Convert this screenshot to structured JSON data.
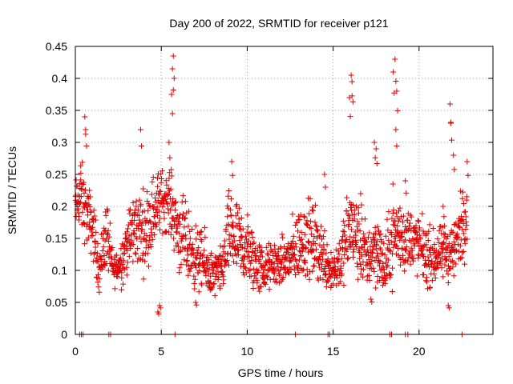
{
  "chart_data": {
    "type": "scatter",
    "title": "Day 200 of 2022, SRMTID for receiver p121",
    "xlabel": "GPS time / hours",
    "ylabel": "SRMTID / TECUs",
    "xlim": [
      0,
      24.3
    ],
    "ylim": [
      0,
      0.45
    ],
    "xticks": [
      0,
      5,
      10,
      15,
      20
    ],
    "yticks": [
      0,
      0.05,
      0.1,
      0.15,
      0.2,
      0.25,
      0.3,
      0.35,
      0.4,
      0.45
    ],
    "xtick_labels": [
      "0",
      "5",
      "10",
      "15",
      "20"
    ],
    "ytick_labels": [
      "0",
      "0.05",
      "0.1",
      "0.15",
      "0.2",
      "0.25",
      "0.3",
      "0.35",
      "0.4",
      "0.45"
    ],
    "grid": true,
    "marker": "+",
    "color": "#e00000",
    "series": [
      {
        "name": "SRMTID",
        "envelope": [
          [
            0.0,
            0.2,
            0.03
          ],
          [
            0.3,
            0.22,
            0.05
          ],
          [
            0.6,
            0.19,
            0.04
          ],
          [
            1.0,
            0.17,
            0.04
          ],
          [
            1.4,
            0.1,
            0.03
          ],
          [
            1.8,
            0.16,
            0.05
          ],
          [
            2.2,
            0.1,
            0.02
          ],
          [
            2.6,
            0.11,
            0.03
          ],
          [
            3.0,
            0.14,
            0.04
          ],
          [
            3.5,
            0.17,
            0.05
          ],
          [
            4.0,
            0.16,
            0.05
          ],
          [
            4.5,
            0.19,
            0.05
          ],
          [
            5.0,
            0.21,
            0.04
          ],
          [
            5.5,
            0.21,
            0.04
          ],
          [
            6.0,
            0.16,
            0.05
          ],
          [
            6.5,
            0.14,
            0.05
          ],
          [
            7.0,
            0.12,
            0.04
          ],
          [
            7.5,
            0.11,
            0.04
          ],
          [
            8.0,
            0.09,
            0.03
          ],
          [
            8.5,
            0.1,
            0.03
          ],
          [
            9.0,
            0.16,
            0.06
          ],
          [
            9.5,
            0.14,
            0.05
          ],
          [
            10.0,
            0.13,
            0.05
          ],
          [
            10.5,
            0.11,
            0.04
          ],
          [
            11.0,
            0.1,
            0.03
          ],
          [
            11.5,
            0.11,
            0.03
          ],
          [
            12.0,
            0.11,
            0.03
          ],
          [
            12.5,
            0.12,
            0.04
          ],
          [
            13.0,
            0.14,
            0.05
          ],
          [
            13.5,
            0.15,
            0.05
          ],
          [
            14.0,
            0.14,
            0.05
          ],
          [
            14.5,
            0.12,
            0.04
          ],
          [
            15.0,
            0.1,
            0.03
          ],
          [
            15.5,
            0.12,
            0.04
          ],
          [
            16.0,
            0.17,
            0.06
          ],
          [
            16.5,
            0.14,
            0.05
          ],
          [
            17.0,
            0.12,
            0.04
          ],
          [
            17.5,
            0.14,
            0.05
          ],
          [
            18.0,
            0.1,
            0.04
          ],
          [
            18.5,
            0.16,
            0.06
          ],
          [
            19.0,
            0.15,
            0.05
          ],
          [
            19.5,
            0.15,
            0.04
          ],
          [
            20.0,
            0.14,
            0.04
          ],
          [
            20.5,
            0.12,
            0.04
          ],
          [
            21.0,
            0.12,
            0.03
          ],
          [
            21.5,
            0.13,
            0.04
          ],
          [
            22.0,
            0.13,
            0.04
          ],
          [
            22.5,
            0.17,
            0.05
          ],
          [
            22.8,
            0.2,
            0.05
          ]
        ],
        "spikes": [
          [
            0.55,
            0.34
          ],
          [
            0.6,
            0.32
          ],
          [
            3.8,
            0.32
          ],
          [
            5.45,
            0.3
          ],
          [
            5.6,
            0.375
          ],
          [
            5.65,
            0.415
          ],
          [
            5.7,
            0.435
          ],
          [
            9.1,
            0.27
          ],
          [
            14.5,
            0.25
          ],
          [
            15.95,
            0.37
          ],
          [
            16.05,
            0.405
          ],
          [
            16.1,
            0.395
          ],
          [
            16.6,
            0.22
          ],
          [
            17.4,
            0.3
          ],
          [
            17.5,
            0.29
          ],
          [
            18.5,
            0.41
          ],
          [
            18.6,
            0.43
          ],
          [
            18.7,
            0.38
          ],
          [
            18.65,
            0.32
          ],
          [
            19.2,
            0.24
          ],
          [
            21.4,
            0.2
          ],
          [
            21.8,
            0.36
          ],
          [
            21.85,
            0.33
          ],
          [
            22.0,
            0.28
          ],
          [
            22.8,
            0.27
          ],
          [
            21.7,
            0.045
          ],
          [
            4.8,
            0.035
          ],
          [
            4.9,
            0.045
          ],
          [
            17.2,
            0.055
          ],
          [
            7.0,
            0.05
          ]
        ],
        "zero_points": [
          0.25,
          0.35,
          0.45,
          1.95,
          2.05,
          5.8,
          12.8,
          14.7,
          14.8,
          18.3,
          18.4,
          19.2,
          19.35,
          22.5
        ]
      }
    ]
  }
}
